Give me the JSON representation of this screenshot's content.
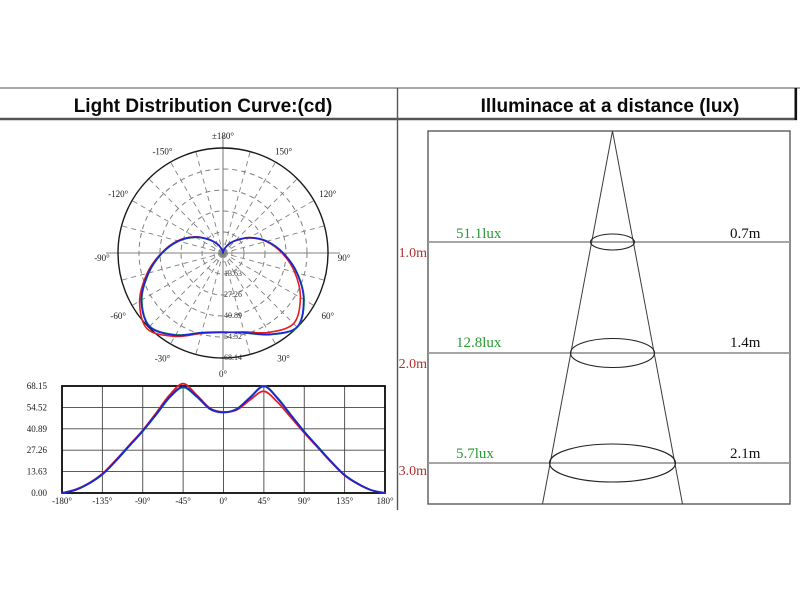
{
  "panels": {
    "left_title": "Light Distribution Curve:(cd)",
    "right_title": "Illuminace at a distance (lux)"
  },
  "colors": {
    "red_series": "#e02020",
    "green_series": "#0f9a30",
    "blue_series": "#2020dd",
    "lux_text": "#2a9a35",
    "distance_text": "#b03131",
    "grid_dashed": "#808080",
    "grid_solid": "#3a3a3a",
    "outer_ring": "#1a1a1a"
  },
  "chart_data": [
    {
      "type": "line",
      "variant": "polar",
      "title": "Light Distribution Curve:(cd)",
      "units": "cd",
      "rmax": 68.15,
      "ring_step": 13.63,
      "radial_ticks": [
        "13.63",
        "27.26",
        "40.89",
        "54.52",
        "68.14"
      ],
      "angle_labels": [
        [
          "±180°",
          180
        ],
        [
          "-150°",
          -150
        ],
        [
          "150°",
          150
        ],
        [
          "-120°",
          -120
        ],
        [
          "120°",
          120
        ],
        [
          "-90°",
          -90
        ],
        [
          "90°",
          90
        ],
        [
          "-60°",
          -60
        ],
        [
          "60°",
          60
        ],
        [
          "-30°",
          -30
        ],
        [
          "30°",
          30
        ],
        [
          "0°",
          0
        ]
      ],
      "angles_deg": [
        -180,
        -165,
        -150,
        -135,
        -120,
        -105,
        -90,
        -75,
        -60,
        -45,
        -30,
        -15,
        0,
        15,
        30,
        45,
        60,
        75,
        90,
        105,
        120,
        135,
        150,
        165,
        180
      ],
      "series": [
        {
          "name": "red",
          "values": [
            0,
            2.2,
            6.3,
            12.3,
            21.0,
            30.5,
            40.0,
            51.0,
            62.5,
            69.6,
            62.5,
            54.0,
            51.6,
            53.0,
            59.5,
            64.8,
            58.0,
            48.2,
            38.3,
            29.0,
            19.6,
            11.2,
            5.6,
            1.7,
            0
          ]
        },
        {
          "name": "green",
          "values": [
            0,
            1.9,
            5.9,
            11.8,
            20.3,
            29.8,
            39.3,
            49.8,
            60.8,
            67.2,
            61.3,
            53.4,
            51.3,
            53.7,
            61.2,
            68.2,
            60.8,
            49.9,
            39.2,
            29.6,
            20.1,
            11.6,
            5.9,
            1.8,
            0
          ]
        },
        {
          "name": "blue",
          "values": [
            0,
            2.0,
            6.1,
            12.0,
            20.6,
            30.1,
            39.6,
            50.2,
            61.2,
            67.6,
            61.7,
            53.6,
            51.4,
            53.5,
            60.9,
            67.9,
            60.4,
            49.6,
            39.0,
            29.4,
            19.9,
            11.4,
            5.8,
            1.8,
            0
          ]
        }
      ]
    },
    {
      "type": "line",
      "variant": "cartesian",
      "title": "Light Distribution Curve:(cd)",
      "units": "cd",
      "ylim": [
        0,
        68.15
      ],
      "yticks": [
        "68.15",
        "54.52",
        "40.89",
        "27.26",
        "13.63",
        "0.00"
      ],
      "xticks": [
        "-180°",
        "-135°",
        "-90°",
        "-45°",
        "0°",
        "45°",
        "90°",
        "135°",
        "180°"
      ],
      "x": [
        -180,
        -165,
        -150,
        -135,
        -120,
        -105,
        -90,
        -75,
        -60,
        -45,
        -30,
        -15,
        0,
        15,
        30,
        45,
        60,
        75,
        90,
        105,
        120,
        135,
        150,
        165,
        180
      ],
      "series": [
        {
          "name": "red",
          "values": [
            0,
            2.2,
            6.3,
            12.3,
            21.0,
            30.5,
            40.0,
            51.0,
            62.5,
            69.6,
            62.5,
            54.0,
            51.6,
            53.0,
            59.5,
            64.8,
            58.0,
            48.2,
            38.3,
            29.0,
            19.6,
            11.2,
            5.6,
            1.7,
            0
          ]
        },
        {
          "name": "green",
          "values": [
            0,
            1.9,
            5.9,
            11.8,
            20.3,
            29.8,
            39.3,
            49.8,
            60.8,
            67.2,
            61.3,
            53.4,
            51.3,
            53.7,
            61.2,
            68.2,
            60.8,
            49.9,
            39.2,
            29.6,
            20.1,
            11.6,
            5.9,
            1.8,
            0
          ]
        },
        {
          "name": "blue",
          "values": [
            0,
            2.0,
            6.1,
            12.0,
            20.6,
            30.1,
            39.6,
            50.2,
            61.2,
            67.6,
            61.7,
            53.6,
            51.4,
            53.5,
            60.9,
            67.9,
            60.4,
            49.6,
            39.0,
            29.4,
            19.9,
            11.4,
            5.8,
            1.8,
            0
          ]
        }
      ]
    },
    {
      "type": "table",
      "title": "Illuminace at a distance (lux)",
      "rows": [
        {
          "distance_label": "1.0m",
          "lux_label": "51.1lux",
          "diameter_label": "0.7m"
        },
        {
          "distance_label": "2.0m",
          "lux_label": "12.8lux",
          "diameter_label": "1.4m"
        },
        {
          "distance_label": "3.0m",
          "lux_label": "5.7lux",
          "diameter_label": "2.1m"
        }
      ]
    }
  ]
}
